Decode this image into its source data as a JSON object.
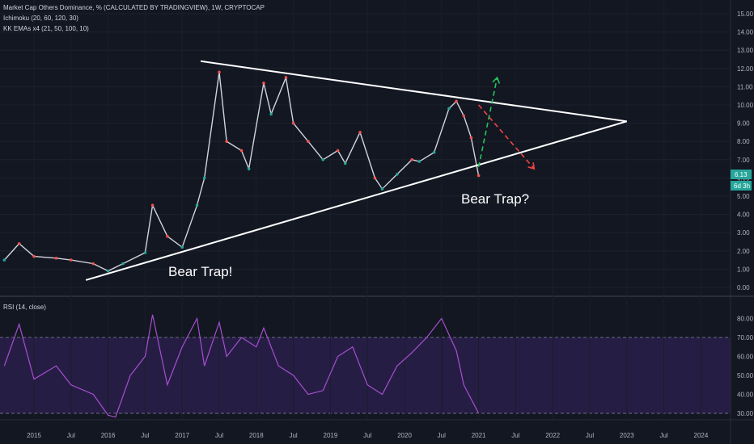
{
  "legend": {
    "main": "Market Cap Others Dominance, % (CALCULATED BY TRADINGVIEW), 1W, CRYPTOCAP",
    "ichimoku": "Ichimoku (20, 60, 120, 30)",
    "emas": "KK EMAs x4 (21, 50, 100, 10)",
    "rsi": "RSI (14, close)"
  },
  "price_badges": {
    "last_price": "6.13",
    "countdown": "6d 3h"
  },
  "annotations": {
    "bear_trap_1": "Bear Trap!",
    "bear_trap_2": "Bear Trap?"
  },
  "colors": {
    "background": "#131722",
    "bull_candle": "#26a69a",
    "bear_candle": "#ef5350",
    "trendline": "#ffffff",
    "bull_projection": "#22c55e",
    "bear_projection": "#ef4444",
    "rsi_line": "#a64fd1",
    "rsi_band": "#7e57c2",
    "last_price_badge": "#26a69a"
  },
  "chart_data": [
    {
      "type": "line",
      "title": "Market Cap Others Dominance, %",
      "x_ticks": [
        "2015",
        "Jul",
        "2016",
        "Jul",
        "2017",
        "Jul",
        "2018",
        "Jul",
        "2019",
        "Jul",
        "2020",
        "Jul",
        "2021",
        "Jul",
        "2022",
        "Jul",
        "2023",
        "Jul",
        "2024"
      ],
      "y_ticks": [
        "0.00",
        "1.00",
        "2.00",
        "3.00",
        "4.00",
        "5.00",
        "6.00",
        "7.00",
        "8.00",
        "9.00",
        "10.00",
        "11.00",
        "12.00",
        "13.00",
        "14.00",
        "15.00"
      ],
      "ylim": [
        -0.5,
        15.5
      ],
      "price_series": {
        "name": "Others Dominance",
        "x": [
          2014.6,
          2014.8,
          2015.0,
          2015.3,
          2015.5,
          2015.8,
          2016.0,
          2016.2,
          2016.5,
          2016.6,
          2016.8,
          2017.0,
          2017.2,
          2017.3,
          2017.5,
          2017.6,
          2017.8,
          2017.9,
          2018.1,
          2018.2,
          2018.4,
          2018.5,
          2018.7,
          2018.9,
          2019.1,
          2019.2,
          2019.4,
          2019.6,
          2019.7,
          2019.9,
          2020.1,
          2020.2,
          2020.4,
          2020.6,
          2020.7,
          2020.8,
          2020.9,
          2021.0
        ],
        "y": [
          1.5,
          2.4,
          1.7,
          1.6,
          1.5,
          1.3,
          0.9,
          1.3,
          1.9,
          4.5,
          2.8,
          2.2,
          4.5,
          6.0,
          11.8,
          8.0,
          7.5,
          6.5,
          11.2,
          9.5,
          11.5,
          9.0,
          8.0,
          7.0,
          7.5,
          6.8,
          8.5,
          6.0,
          5.4,
          6.2,
          7.0,
          6.9,
          7.4,
          9.8,
          10.2,
          9.4,
          8.2,
          6.13
        ]
      },
      "trendlines": [
        {
          "name": "upper",
          "x": [
            2017.25,
            2023.0
          ],
          "y": [
            12.4,
            9.1
          ]
        },
        {
          "name": "lower",
          "x": [
            2015.7,
            2023.0
          ],
          "y": [
            0.4,
            9.1
          ]
        }
      ],
      "projections": [
        {
          "name": "bullish",
          "x": [
            2021.0,
            2021.25
          ],
          "y": [
            6.6,
            11.5
          ]
        },
        {
          "name": "bearish",
          "x": [
            2021.0,
            2021.75
          ],
          "y": [
            10.0,
            6.5
          ]
        }
      ],
      "price_labels": [
        "6.13",
        "6d 3h"
      ]
    },
    {
      "type": "line",
      "title": "RSI (14, close)",
      "y_ticks": [
        "30.00",
        "40.00",
        "50.00",
        "60.00",
        "70.00",
        "80.00"
      ],
      "ylim": [
        20,
        90
      ],
      "band": [
        30,
        70
      ],
      "series": [
        {
          "x": [
            2014.6,
            2014.8,
            2015.0,
            2015.3,
            2015.5,
            2015.8,
            2016.0,
            2016.1,
            2016.3,
            2016.5,
            2016.6,
            2016.8,
            2017.0,
            2017.2,
            2017.3,
            2017.5,
            2017.6,
            2017.8,
            2018.0,
            2018.1,
            2018.3,
            2018.5,
            2018.7,
            2018.9,
            2019.1,
            2019.3,
            2019.5,
            2019.7,
            2019.9,
            2020.1,
            2020.3,
            2020.5,
            2020.7,
            2020.8,
            2021.0
          ],
          "y": [
            55,
            77,
            48,
            55,
            45,
            40,
            29,
            28,
            50,
            60,
            82,
            45,
            65,
            80,
            55,
            78,
            60,
            70,
            65,
            75,
            55,
            50,
            40,
            42,
            60,
            65,
            45,
            40,
            55,
            62,
            70,
            80,
            63,
            45,
            30
          ]
        }
      ]
    }
  ]
}
